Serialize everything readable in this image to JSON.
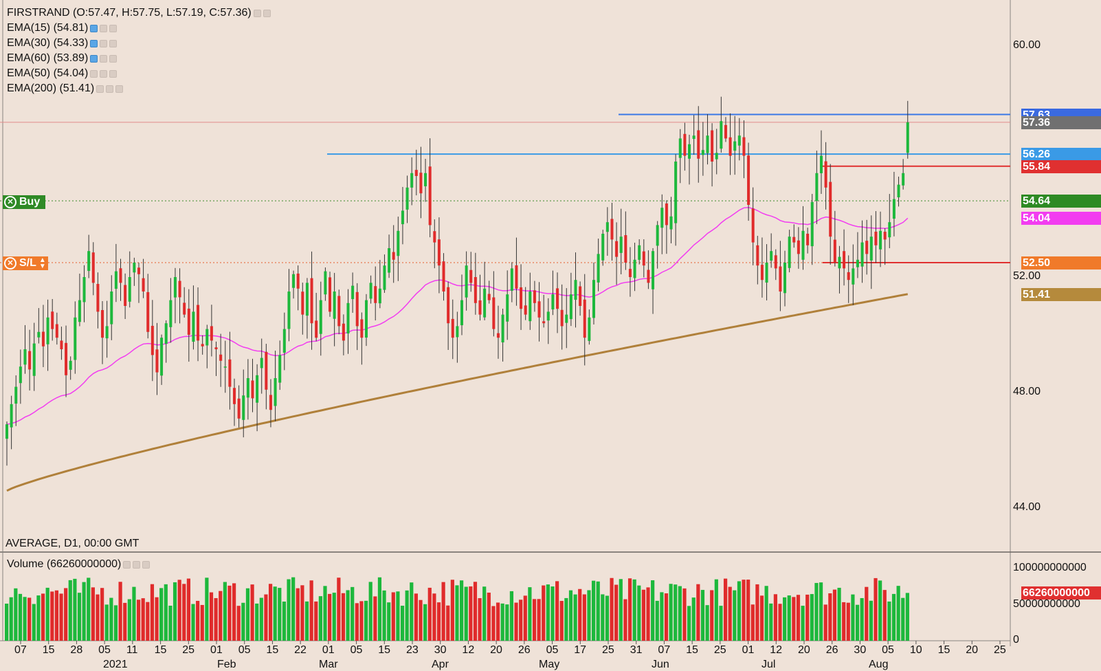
{
  "header": {
    "ohlc_label": "FIRSTRAND (O:57.47, H:57.75, L:57.19, C:57.36)",
    "period_label": "AVERAGE, D1, 00:00 GMT"
  },
  "indicators": [
    {
      "label": "EMA(15) (54.81)",
      "active": true
    },
    {
      "label": "EMA(30) (54.33)",
      "active": true
    },
    {
      "label": "EMA(60) (53.89)",
      "active": true
    },
    {
      "label": "EMA(50) (54.04)",
      "active": false
    },
    {
      "label": "EMA(200) (51.41)",
      "active": false
    }
  ],
  "volume_panel": {
    "label": "Volume (66260000000)",
    "last_tag": "66260000000"
  },
  "orders": {
    "buy_label": "Buy",
    "sl_label": "S/L"
  },
  "colors": {
    "background": "#efe2d8",
    "up": "#1db83c",
    "down": "#e02b2b",
    "ema50": "#f23cf0",
    "ema200": "#b0803a",
    "resistance": "#3a78e6",
    "support": "#3a9ae6",
    "buy_line": "#3a8a2a",
    "sl_line": "#e65a2a",
    "target_line": "#e03030"
  },
  "price_tags": [
    {
      "value": "57.63",
      "bg": "#3a6ae0",
      "level": 57.63
    },
    {
      "value": "57.36",
      "bg": "#707070",
      "level": 57.36
    },
    {
      "value": "56.26",
      "bg": "#3a9ae6",
      "level": 56.26
    },
    {
      "value": "55.84",
      "bg": "#e03030",
      "level": 55.84
    },
    {
      "value": "54.64",
      "bg": "#2e8a24",
      "level": 54.64
    },
    {
      "value": "54.04",
      "bg": "#f23cf0",
      "level": 54.04
    },
    {
      "value": "52.50",
      "bg": "#f07a2a",
      "level": 52.5
    },
    {
      "value": "51.41",
      "bg": "#b58a3c",
      "level": 51.41
    }
  ],
  "chart_data": {
    "type": "candlestick",
    "title": "FIRSTRAND",
    "xlabel": "",
    "ylabel": "",
    "ylim": [
      42.5,
      61.5
    ],
    "y_ticks": [
      60.0,
      56.0,
      52.0,
      48.0,
      44.0
    ],
    "y_tick_labels": [
      "60.00",
      "",
      "52.00",
      "48.00",
      "44.00"
    ],
    "x_tick_labels": [
      "07",
      "15",
      "28",
      "05",
      "11",
      "15",
      "25",
      "01",
      "05",
      "15",
      "22",
      "01",
      "05",
      "15",
      "23",
      "30",
      "12",
      "20",
      "26",
      "05",
      "17",
      "25",
      "31",
      "07",
      "15",
      "25",
      "01",
      "12",
      "20",
      "26",
      "30",
      "05",
      "10",
      "15",
      "20",
      "25"
    ],
    "x_month_labels": [
      "2021",
      "Feb",
      "Mar",
      "Apr",
      "May",
      "Jun",
      "Jul",
      "Aug"
    ],
    "grid": false,
    "horizontal_lines": [
      {
        "name": "resistance",
        "value": 57.63
      },
      {
        "name": "support",
        "value": 56.26
      },
      {
        "name": "buy",
        "value": 54.64
      },
      {
        "name": "stop_loss",
        "value": 52.5
      },
      {
        "name": "target_upper",
        "value": 55.84
      },
      {
        "name": "target_lower",
        "value": 52.5
      }
    ],
    "last_ohlc": {
      "open": 57.47,
      "high": 57.75,
      "low": 57.19,
      "close": 57.36
    },
    "closes": [
      46.9,
      47.6,
      48.2,
      48.9,
      49.5,
      48.8,
      49.7,
      50.1,
      49.6,
      50.6,
      50.2,
      49.9,
      49.5,
      48.6,
      49.1,
      50.6,
      51.2,
      52.0,
      52.9,
      51.8,
      50.8,
      49.9,
      50.3,
      51.5,
      52.2,
      51.8,
      51.0,
      52.0,
      52.5,
      52.1,
      51.5,
      50.1,
      49.3,
      48.7,
      49.9,
      50.4,
      51.2,
      52.0,
      51.3,
      50.7,
      50.0,
      50.8,
      49.8,
      49.6,
      50.2,
      49.8,
      49.5,
      49.1,
      48.9,
      48.2,
      47.6,
      47.1,
      47.9,
      48.5,
      47.8,
      48.6,
      49.2,
      48.1,
      47.4,
      48.5,
      49.3,
      50.2,
      51.5,
      52.1,
      51.6,
      50.7,
      51.8,
      50.4,
      49.9,
      51.2,
      52.2,
      50.8,
      51.5,
      50.3,
      49.8,
      51.1,
      51.7,
      50.3,
      49.9,
      51.2,
      51.8,
      51.1,
      51.6,
      52.4,
      53.0,
      52.6,
      53.6,
      54.3,
      55.1,
      55.6,
      55.5,
      54.9,
      55.6,
      53.8,
      53.2,
      52.4,
      51.5,
      50.4,
      49.9,
      50.3,
      51.2,
      52.4,
      51.8,
      51.1,
      50.7,
      51.6,
      51.2,
      50.2,
      49.9,
      50.7,
      51.4,
      52.3,
      51.6,
      50.9,
      50.7,
      51.5,
      51.1,
      50.6,
      50.4,
      50.8,
      51.4,
      50.9,
      50.3,
      50.7,
      51.4,
      51.9,
      51.0,
      49.9,
      50.6,
      51.9,
      52.8,
      53.5,
      53.9,
      53.3,
      52.7,
      53.4,
      52.5,
      52.0,
      52.6,
      53.1,
      52.4,
      51.8,
      52.9,
      53.8,
      54.4,
      53.8,
      54.1,
      56.0,
      56.8,
      56.2,
      56.6,
      56.9,
      56.1,
      56.4,
      56.9,
      56.0,
      56.3,
      57.4,
      56.8,
      56.2,
      56.7,
      56.9,
      56.2,
      54.5,
      53.2,
      52.4,
      51.9,
      52.5,
      52.9,
      52.3,
      51.5,
      52.5,
      53.4,
      53.2,
      52.8,
      53.6,
      53.1,
      54.6,
      55.6,
      56.2,
      55.1,
      53.4,
      52.5,
      52.7,
      52.3,
      51.9,
      52.3,
      52.6,
      53.2,
      52.8,
      53.4,
      53.1,
      53.6,
      53.3,
      53.9,
      54.7,
      55.2,
      55.6,
      57.36
    ],
    "ema50_last": 54.04,
    "ema200_last": 51.41,
    "volume": {
      "ylim": [
        0,
        120000000000
      ],
      "y_ticks": [
        0,
        50000000000,
        100000000000
      ],
      "y_tick_labels": [
        "0",
        "50000000000",
        "100000000000"
      ],
      "last_value": 66260000000
    }
  }
}
